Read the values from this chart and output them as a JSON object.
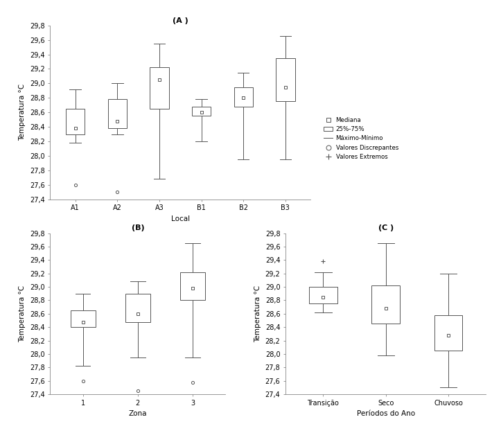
{
  "title_A": "(A )",
  "title_B": "(B)",
  "title_C": "(C )",
  "ylabel": "Temperatura °C",
  "xlabel_A": "Local",
  "xlabel_B": "Zona",
  "xlabel_C": "Períodos do Ano",
  "ylim": [
    27.4,
    29.8
  ],
  "yticks": [
    27.4,
    27.6,
    27.8,
    28.0,
    28.2,
    28.4,
    28.6,
    28.8,
    29.0,
    29.2,
    29.4,
    29.6,
    29.8
  ],
  "A_labels": [
    "A1",
    "A2",
    "A3",
    "B1",
    "B2",
    "B3"
  ],
  "A_medians": [
    28.38,
    28.48,
    29.05,
    28.6,
    28.8,
    28.95
  ],
  "A_q1": [
    28.3,
    28.38,
    28.65,
    28.55,
    28.68,
    28.75
  ],
  "A_q3": [
    28.65,
    28.78,
    29.22,
    28.68,
    28.95,
    29.35
  ],
  "A_whislo": [
    28.18,
    28.3,
    27.68,
    28.2,
    27.95,
    27.95
  ],
  "A_whishi": [
    28.92,
    29.0,
    29.55,
    28.78,
    29.15,
    29.65
  ],
  "A_fliers_lo": [
    [
      27.6
    ],
    [
      27.5
    ],
    [],
    [],
    [],
    []
  ],
  "A_fliers_hi": [
    [],
    [],
    [],
    [],
    [],
    []
  ],
  "B_labels": [
    "1",
    "2",
    "3"
  ],
  "B_medians": [
    28.48,
    28.6,
    28.98
  ],
  "B_q1": [
    28.4,
    28.48,
    28.8
  ],
  "B_q3": [
    28.65,
    28.9,
    29.22
  ],
  "B_whislo": [
    27.82,
    27.95,
    27.95
  ],
  "B_whishi": [
    28.9,
    29.08,
    29.65
  ],
  "B_fliers_lo": [
    [
      27.6
    ],
    [
      27.45
    ],
    [
      27.58
    ]
  ],
  "B_fliers_hi": [
    [],
    [],
    []
  ],
  "C_labels": [
    "Transição",
    "Seco",
    "Chuvoso"
  ],
  "C_medians": [
    28.85,
    28.68,
    28.28
  ],
  "C_q1": [
    28.75,
    28.45,
    28.05
  ],
  "C_q3": [
    29.0,
    29.02,
    28.58
  ],
  "C_whislo": [
    28.62,
    27.98,
    27.5
  ],
  "C_whishi": [
    29.22,
    29.65,
    29.2
  ],
  "C_fliers_lo": [
    [],
    [],
    []
  ],
  "C_fliers_hi": [
    [
      29.38
    ],
    [],
    []
  ],
  "median_marker": "s",
  "median_marker_size": 3,
  "median_marker_color": "white",
  "median_marker_edgecolor": "#555555",
  "outlier_marker": "o",
  "outlier_marker_size": 3,
  "extreme_marker": "+",
  "extreme_marker_size": 5,
  "line_color": "#555555",
  "box_edgecolor": "#555555",
  "background_color": "#ffffff"
}
